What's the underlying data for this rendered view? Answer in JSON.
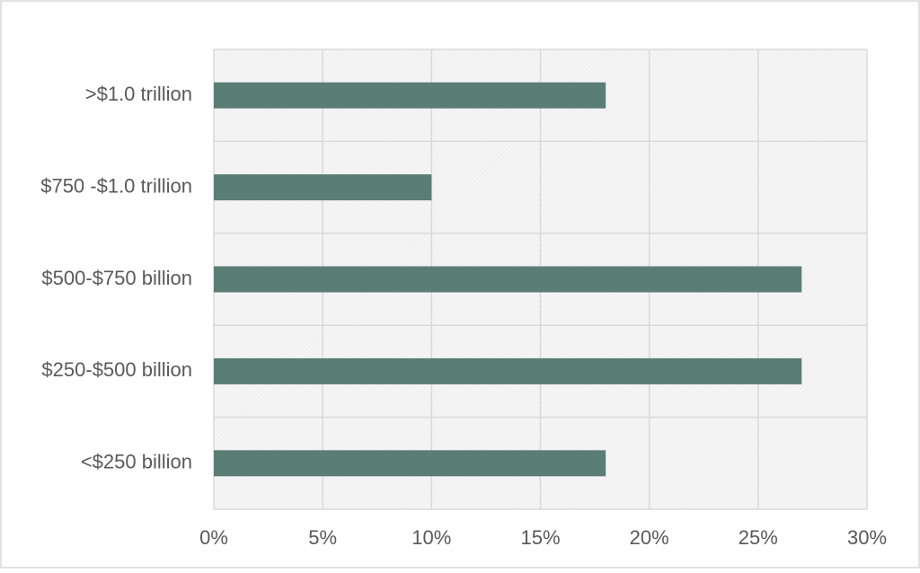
{
  "chart_data": {
    "type": "bar",
    "orientation": "horizontal",
    "categories": [
      ">$1.0 trillion",
      "$750 -$1.0 trillion",
      "$500-$750 billion",
      "$250-$500 billion",
      "<$250 billion"
    ],
    "values": [
      18,
      10,
      27,
      27,
      18
    ],
    "color": "#5a7d76",
    "xlim": [
      0,
      30
    ],
    "xticks": [
      {
        "value": 0,
        "label": "0%"
      },
      {
        "value": 5,
        "label": "5%"
      },
      {
        "value": 10,
        "label": "10%"
      },
      {
        "value": 15,
        "label": "15%"
      },
      {
        "value": 20,
        "label": "20%"
      },
      {
        "value": 25,
        "label": "25%"
      },
      {
        "value": 30,
        "label": "30%"
      }
    ],
    "grid": true
  }
}
